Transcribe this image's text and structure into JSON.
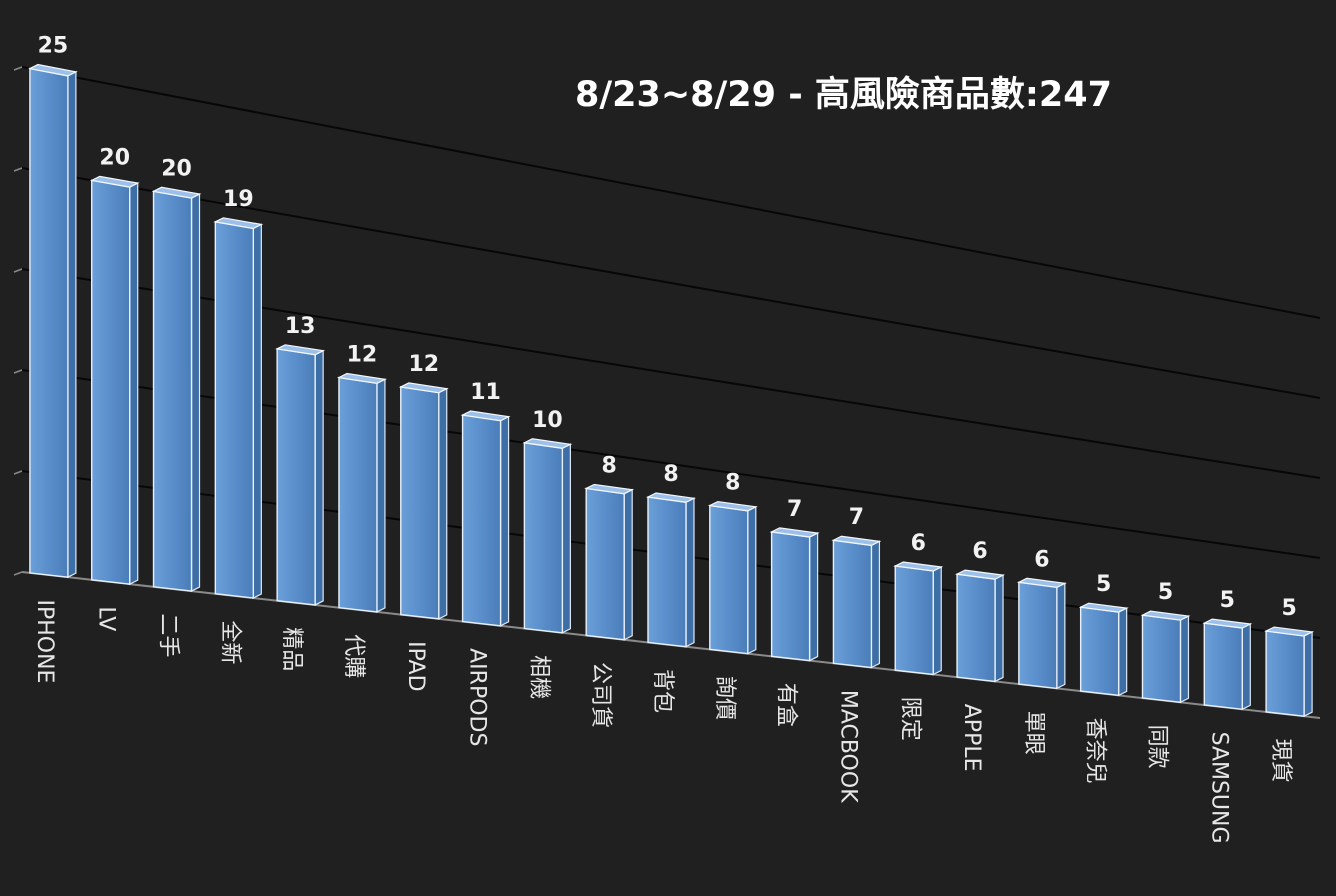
{
  "chart_data": {
    "type": "bar",
    "title": "8/23~8/29 - 高風險商品數:247",
    "categories": [
      "IPHONE",
      "LV",
      "二手",
      "全新",
      "精品",
      "代購",
      "IPAD",
      "AIRPODS",
      "相機",
      "公司貨",
      "背包",
      "詢價",
      "有盒",
      "MACBOOK",
      "限定",
      "APPLE",
      "單眼",
      "香奈兒",
      "同款",
      "SAMSUNG",
      "現貨"
    ],
    "values": [
      25,
      20,
      20,
      19,
      13,
      12,
      12,
      11,
      10,
      8,
      8,
      8,
      7,
      7,
      6,
      6,
      6,
      5,
      5,
      5,
      5
    ],
    "ylim": [
      0,
      25
    ],
    "grid": true,
    "legend": "none",
    "bar_color": "#5b8fcc",
    "background_color": "#202020"
  }
}
